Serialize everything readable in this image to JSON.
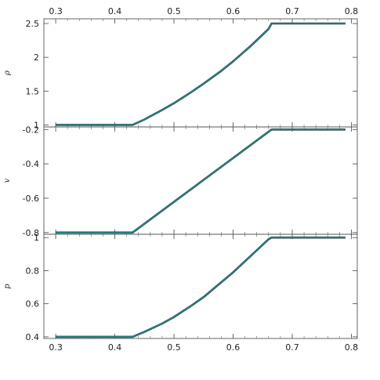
{
  "chart_data": [
    {
      "type": "line",
      "ylabel": "ρ",
      "xlim": [
        0.28,
        0.81
      ],
      "ylim": [
        0.97,
        2.57
      ],
      "yticks": [
        1,
        1.5,
        2,
        2.5
      ],
      "ytick_labels": [
        "1",
        "1.5",
        "2",
        "2.5"
      ],
      "xticks": [
        0.3,
        0.4,
        0.5,
        0.6,
        0.7,
        0.8
      ],
      "xtick_labels": [
        "0.3",
        "0.4",
        "0.5",
        "0.6",
        "0.7",
        "0.8"
      ],
      "xtick_labels_position": "top",
      "series": [
        {
          "x": [
            0.3,
            0.43,
            0.45,
            0.48,
            0.5,
            0.53,
            0.55,
            0.58,
            0.6,
            0.63,
            0.66,
            0.665,
            0.79
          ],
          "y": [
            1.0,
            1.0,
            1.08,
            1.22,
            1.32,
            1.49,
            1.61,
            1.8,
            1.94,
            2.17,
            2.42,
            2.5,
            2.5
          ]
        }
      ]
    },
    {
      "type": "line",
      "ylabel": "v",
      "xlim": [
        0.28,
        0.81
      ],
      "ylim": [
        -0.81,
        -0.185
      ],
      "yticks": [
        -0.8,
        -0.6,
        -0.4,
        -0.2
      ],
      "ytick_labels": [
        "-0.8",
        "-0.6",
        "-0.4",
        "-0.2"
      ],
      "series": [
        {
          "x": [
            0.3,
            0.43,
            0.665,
            0.79
          ],
          "y": [
            -0.8,
            -0.8,
            -0.2,
            -0.2
          ]
        }
      ]
    },
    {
      "type": "line",
      "ylabel": "p",
      "xlim": [
        0.28,
        0.81
      ],
      "ylim": [
        0.39,
        1.02
      ],
      "yticks": [
        0.4,
        0.6,
        0.8,
        1
      ],
      "ytick_labels": [
        "0.4",
        "0.6",
        "0.8",
        "1"
      ],
      "xticks": [
        0.3,
        0.4,
        0.5,
        0.6,
        0.7,
        0.8
      ],
      "xtick_labels": [
        "0.3",
        "0.4",
        "0.5",
        "0.6",
        "0.7",
        "0.8"
      ],
      "xtick_labels_position": "bottom",
      "series": [
        {
          "x": [
            0.3,
            0.43,
            0.45,
            0.48,
            0.5,
            0.53,
            0.55,
            0.58,
            0.6,
            0.63,
            0.66,
            0.665,
            0.79
          ],
          "y": [
            0.4,
            0.4,
            0.43,
            0.48,
            0.52,
            0.59,
            0.64,
            0.73,
            0.79,
            0.89,
            0.99,
            1.0,
            1.0
          ]
        }
      ]
    }
  ],
  "style": {
    "line_color": "#1f8a8a",
    "line_shadow": "#2a2a2a",
    "frame_color": "#555555"
  }
}
